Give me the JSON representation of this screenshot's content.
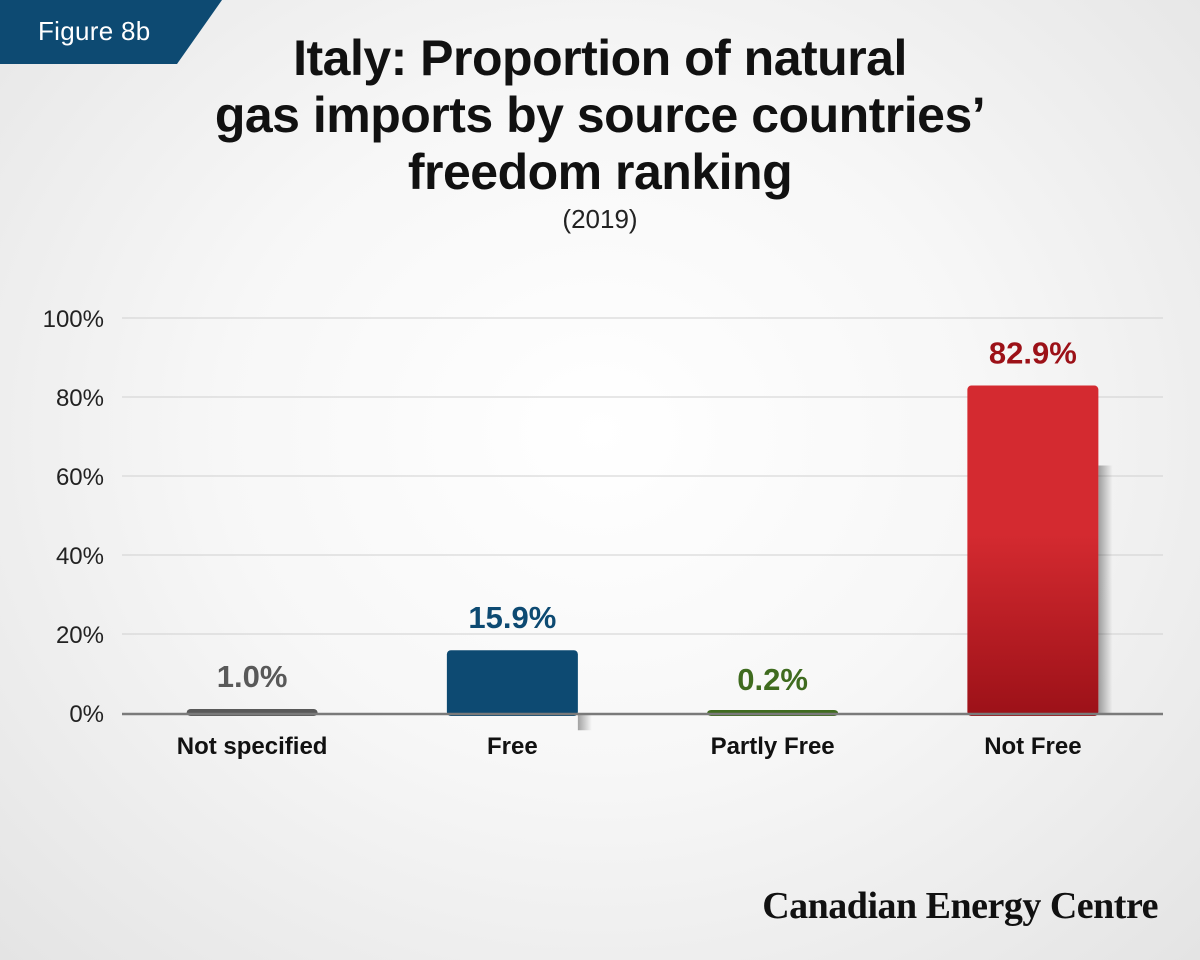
{
  "badge": "Figure 8b",
  "title_lines": [
    "Italy: Proportion of natural",
    "gas imports by source countries’",
    "freedom ranking"
  ],
  "subtitle": "(2019)",
  "brand": "Canadian Energy Centre",
  "colors": {
    "badge": "#0d4a72",
    "not_specified": "#595959",
    "free": "#0d4a72",
    "partly_free": "#3f6b1f",
    "not_free": "#d42a30",
    "not_free_dark": "#9c1118",
    "grid": "#d0d0d0",
    "axis": "#7a7a7a"
  },
  "chart_data": {
    "type": "bar",
    "title": "Italy: Proportion of natural gas imports by source countries’ freedom ranking",
    "subtitle": "(2019)",
    "categories": [
      "Not specified",
      "Free",
      "Partly Free",
      "Not Free"
    ],
    "values": [
      1.0,
      15.9,
      0.2,
      82.9
    ],
    "data_labels": [
      "1.0%",
      "15.9%",
      "0.2%",
      "82.9%"
    ],
    "ylim": [
      0,
      100
    ],
    "yticks": [
      0,
      20,
      40,
      60,
      80,
      100
    ],
    "ytick_labels": [
      "0%",
      "20%",
      "40%",
      "60%",
      "80%",
      "100%"
    ],
    "grid": true,
    "xlabel": "",
    "ylabel": ""
  }
}
